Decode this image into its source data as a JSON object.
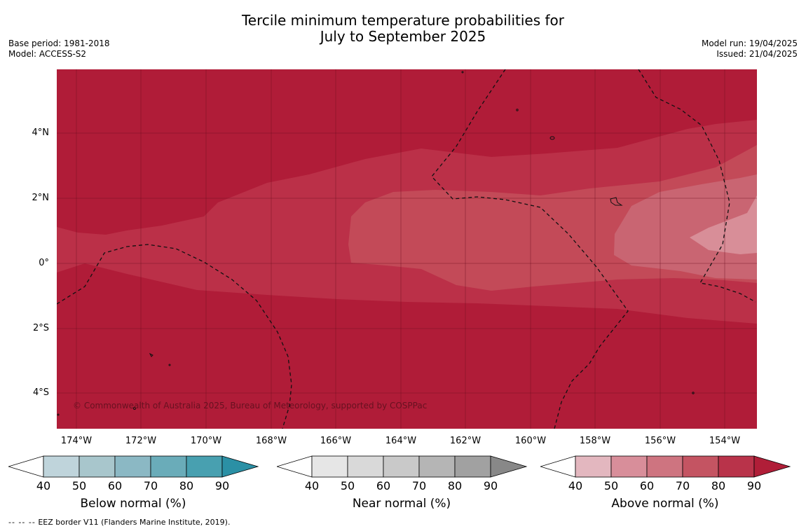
{
  "title_line1": "Tercile minimum temperature probabilities for",
  "title_line2": "July to September 2025",
  "meta_left": [
    "Base period: 1981-2018",
    "Model: ACCESS-S2"
  ],
  "meta_right": [
    "Model run: 19/04/2025",
    "Issued: 21/04/2025"
  ],
  "copyright": "© Commonwealth of Australia 2025, Bureau of Meteorology, supported by COSPPac",
  "y_ticks": [
    "4°N",
    "2°N",
    "0°",
    "2°S",
    "4°S"
  ],
  "x_ticks": [
    "174°W",
    "172°W",
    "170°W",
    "168°W",
    "166°W",
    "164°W",
    "162°W",
    "160°W",
    "158°W",
    "156°W",
    "154°W"
  ],
  "colorbars": [
    {
      "label": "Below normal (%)",
      "ticks": [
        "40",
        "50",
        "60",
        "70",
        "80",
        "90"
      ],
      "colors": [
        "#ffffff",
        "#bfd4db",
        "#a8c6cc",
        "#8bb8c4",
        "#6aacb9",
        "#48a0b0",
        "#2b90a5"
      ]
    },
    {
      "label": "Near normal (%)",
      "ticks": [
        "40",
        "50",
        "60",
        "70",
        "80",
        "90"
      ],
      "colors": [
        "#ffffff",
        "#e6e6e6",
        "#d9d9d9",
        "#c9c9c9",
        "#b5b5b5",
        "#a1a1a1",
        "#888888"
      ]
    },
    {
      "label": "Above normal (%)",
      "ticks": [
        "40",
        "50",
        "60",
        "70",
        "80",
        "90"
      ],
      "colors": [
        "#ffffff",
        "#e3b7bf",
        "#d88e9a",
        "#ce7480",
        "#c45462",
        "#b9334a",
        "#b01e38"
      ]
    }
  ],
  "map_colors": {
    "p80": "#b01c38",
    "p70": "#bb3048",
    "p60": "#c34a58",
    "p50": "#c96572",
    "p40": "#d88e98",
    "grid": "#6e1020"
  },
  "footer_dash": "--  --  --",
  "footer_text": "EEZ border V11 (Flanders Marine Institute, 2019)."
}
